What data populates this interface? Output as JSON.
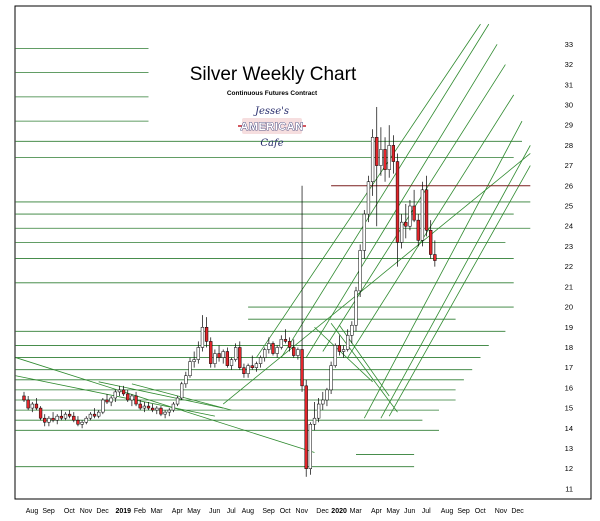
{
  "chart_data": {
    "type": "candlestick",
    "title": "Silver Weekly Chart",
    "subtitle": "Continuous Futures Contract",
    "logo": {
      "top": "Jesse's",
      "main": "AMERICAN",
      "bottom": "Cafe",
      "colors": {
        "navy": "#2a2f6e",
        "red": "#c4202b"
      }
    },
    "ylim": [
      10.6,
      34.6
    ],
    "y_ticks": [
      11,
      12,
      13,
      14,
      15,
      16,
      17,
      18,
      19,
      20,
      21,
      22,
      23,
      24,
      25,
      26,
      27,
      28,
      29,
      30,
      31,
      32,
      33
    ],
    "x_labels": [
      {
        "label": "Aug",
        "week": 0
      },
      {
        "label": "Sep",
        "week": 4
      },
      {
        "label": "Oct",
        "week": 9
      },
      {
        "label": "Nov",
        "week": 13
      },
      {
        "label": "Dec",
        "week": 17
      },
      {
        "label": "2019",
        "week": 22,
        "bold": true
      },
      {
        "label": "Feb",
        "week": 26
      },
      {
        "label": "Mar",
        "week": 30
      },
      {
        "label": "Apr",
        "week": 35
      },
      {
        "label": "May",
        "week": 39
      },
      {
        "label": "Jun",
        "week": 44
      },
      {
        "label": "Jul",
        "week": 48
      },
      {
        "label": "Aug",
        "week": 52
      },
      {
        "label": "Sep",
        "week": 57
      },
      {
        "label": "Oct",
        "week": 61
      },
      {
        "label": "Nov",
        "week": 65
      },
      {
        "label": "Dec",
        "week": 70
      },
      {
        "label": "2020",
        "week": 74,
        "bold": true
      },
      {
        "label": "Mar",
        "week": 78
      },
      {
        "label": "Apr",
        "week": 83
      },
      {
        "label": "May",
        "week": 87
      },
      {
        "label": "Jun",
        "week": 91
      },
      {
        "label": "Jul",
        "week": 95
      },
      {
        "label": "Aug",
        "week": 100
      },
      {
        "label": "Sep",
        "week": 104
      },
      {
        "label": "Oct",
        "week": 108
      },
      {
        "label": "Nov",
        "week": 113
      },
      {
        "label": "Dec",
        "week": 117
      }
    ],
    "colors": {
      "up": "#ffffff",
      "down": "#e3262b",
      "wick": "#000000",
      "support": "#2e7d32",
      "resistance": "#7a1f1f",
      "channel": "#2f8a2f"
    },
    "resistance_line": {
      "price": 26.0,
      "from_week": 74,
      "to_week": 122
    },
    "horizontal_levels": [
      {
        "price": 32.8,
        "from_week": -2,
        "to_week": 30
      },
      {
        "price": 31.6,
        "from_week": -2,
        "to_week": 30
      },
      {
        "price": 30.4,
        "from_week": -2,
        "to_week": 30
      },
      {
        "price": 29.2,
        "from_week": -2,
        "to_week": 30
      },
      {
        "price": 28.2,
        "from_week": -2,
        "to_week": 120
      },
      {
        "price": 27.4,
        "from_week": -2,
        "to_week": 118
      },
      {
        "price": 25.2,
        "from_week": -2,
        "to_week": 122
      },
      {
        "price": 24.6,
        "from_week": -2,
        "to_week": 118
      },
      {
        "price": 23.9,
        "from_week": -2,
        "to_week": 122
      },
      {
        "price": 23.2,
        "from_week": -2,
        "to_week": 116
      },
      {
        "price": 22.4,
        "from_week": -2,
        "to_week": 118
      },
      {
        "price": 21.2,
        "from_week": -2,
        "to_week": 118
      },
      {
        "price": 20.0,
        "from_week": 54,
        "to_week": 118
      },
      {
        "price": 19.4,
        "from_week": 54,
        "to_week": 104
      },
      {
        "price": 18.8,
        "from_week": -2,
        "to_week": 116
      },
      {
        "price": 18.1,
        "from_week": -2,
        "to_week": 112
      },
      {
        "price": 17.5,
        "from_week": -2,
        "to_week": 110
      },
      {
        "price": 16.9,
        "from_week": -2,
        "to_week": 108
      },
      {
        "price": 16.4,
        "from_week": -2,
        "to_week": 106
      },
      {
        "price": 15.9,
        "from_week": -2,
        "to_week": 104
      },
      {
        "price": 15.4,
        "from_week": -2,
        "to_week": 104
      },
      {
        "price": 14.9,
        "from_week": -2,
        "to_week": 100
      },
      {
        "price": 14.4,
        "from_week": -2,
        "to_week": 96
      },
      {
        "price": 13.9,
        "from_week": -2,
        "to_week": 100
      },
      {
        "price": 12.7,
        "from_week": 80,
        "to_week": 94
      },
      {
        "price": 12.1,
        "from_week": -2,
        "to_week": 94
      }
    ],
    "trend_lines": [
      {
        "from": [
          -2,
          17.5
        ],
        "to": [
          70,
          12.8
        ]
      },
      {
        "from": [
          -2,
          16.6
        ],
        "to": [
          46,
          14.6
        ]
      },
      {
        "from": [
          18,
          16.3
        ],
        "to": [
          48,
          15.0
        ]
      },
      {
        "from": [
          26,
          16.2
        ],
        "to": [
          50,
          14.9
        ]
      },
      {
        "from": [
          48,
          15.2
        ],
        "to": [
          122,
          27.6
        ]
      },
      {
        "from": [
          56,
          17.5
        ],
        "to": [
          110,
          34.0
        ]
      },
      {
        "from": [
          62,
          17.5
        ],
        "to": [
          112,
          34.0
        ]
      },
      {
        "from": [
          68,
          17.5
        ],
        "to": [
          114,
          33.0
        ]
      },
      {
        "from": [
          72,
          17.8
        ],
        "to": [
          116,
          32.0
        ]
      },
      {
        "from": [
          78,
          17.5
        ],
        "to": [
          118,
          30.5
        ]
      },
      {
        "from": [
          82,
          14.5
        ],
        "to": [
          120,
          29.2
        ]
      },
      {
        "from": [
          86,
          14.5
        ],
        "to": [
          122,
          28.0
        ]
      },
      {
        "from": [
          88,
          14.6
        ],
        "to": [
          122,
          27.0
        ]
      },
      {
        "from": [
          74,
          19.2
        ],
        "to": [
          90,
          14.8
        ]
      },
      {
        "from": [
          70,
          19.0
        ],
        "to": [
          84,
          16.3
        ]
      },
      {
        "from": [
          76,
          19.1
        ],
        "to": [
          88,
          15.6
        ]
      }
    ],
    "weeks": [
      [
        15.6,
        15.8,
        15.3,
        15.4
      ],
      [
        15.4,
        15.6,
        14.9,
        15.0
      ],
      [
        15.0,
        15.3,
        14.8,
        15.2
      ],
      [
        15.2,
        15.5,
        14.9,
        15.0
      ],
      [
        15.0,
        15.1,
        14.4,
        14.5
      ],
      [
        14.5,
        14.7,
        14.1,
        14.3
      ],
      [
        14.3,
        14.6,
        14.1,
        14.5
      ],
      [
        14.5,
        14.8,
        14.3,
        14.4
      ],
      [
        14.4,
        14.7,
        14.2,
        14.6
      ],
      [
        14.6,
        14.9,
        14.4,
        14.5
      ],
      [
        14.5,
        14.8,
        14.4,
        14.7
      ],
      [
        14.7,
        14.9,
        14.5,
        14.6
      ],
      [
        14.6,
        14.8,
        14.3,
        14.4
      ],
      [
        14.4,
        14.6,
        14.1,
        14.2
      ],
      [
        14.2,
        14.4,
        14.0,
        14.3
      ],
      [
        14.3,
        14.6,
        14.2,
        14.5
      ],
      [
        14.5,
        14.8,
        14.4,
        14.7
      ],
      [
        14.7,
        15.0,
        14.5,
        14.6
      ],
      [
        14.6,
        14.9,
        14.5,
        14.8
      ],
      [
        14.8,
        15.5,
        14.7,
        15.4
      ],
      [
        15.4,
        15.7,
        15.2,
        15.3
      ],
      [
        15.3,
        15.6,
        15.1,
        15.5
      ],
      [
        15.5,
        15.9,
        15.3,
        15.8
      ],
      [
        15.8,
        16.1,
        15.6,
        15.9
      ],
      [
        15.9,
        16.1,
        15.6,
        15.7
      ],
      [
        15.7,
        15.9,
        15.3,
        15.4
      ],
      [
        15.4,
        15.7,
        15.1,
        15.6
      ],
      [
        15.6,
        15.8,
        15.1,
        15.2
      ],
      [
        15.2,
        15.4,
        14.9,
        15.0
      ],
      [
        15.0,
        15.3,
        14.8,
        15.1
      ],
      [
        15.1,
        15.3,
        14.9,
        15.0
      ],
      [
        15.0,
        15.2,
        14.8,
        14.9
      ],
      [
        14.9,
        15.1,
        14.7,
        15.0
      ],
      [
        15.0,
        15.1,
        14.6,
        14.7
      ],
      [
        14.7,
        14.9,
        14.5,
        14.8
      ],
      [
        14.8,
        15.0,
        14.6,
        14.9
      ],
      [
        14.9,
        15.3,
        14.8,
        15.2
      ],
      [
        15.2,
        15.6,
        15.1,
        15.5
      ],
      [
        15.5,
        16.3,
        15.4,
        16.2
      ],
      [
        16.2,
        16.8,
        16.0,
        16.6
      ],
      [
        16.6,
        17.5,
        16.5,
        17.3
      ],
      [
        17.3,
        17.8,
        17.0,
        17.4
      ],
      [
        17.4,
        18.3,
        17.2,
        18.0
      ],
      [
        18.0,
        19.6,
        17.8,
        19.0
      ],
      [
        19.0,
        19.5,
        18.0,
        18.3
      ],
      [
        18.3,
        18.5,
        17.0,
        17.2
      ],
      [
        17.2,
        17.9,
        17.0,
        17.7
      ],
      [
        17.7,
        18.1,
        17.3,
        17.5
      ],
      [
        17.5,
        17.9,
        17.2,
        17.8
      ],
      [
        17.8,
        18.0,
        17.0,
        17.1
      ],
      [
        17.1,
        17.5,
        16.9,
        17.4
      ],
      [
        17.4,
        18.2,
        17.3,
        18.0
      ],
      [
        18.0,
        18.3,
        16.9,
        17.0
      ],
      [
        17.0,
        17.2,
        16.5,
        16.7
      ],
      [
        16.7,
        17.2,
        16.5,
        17.1
      ],
      [
        17.1,
        17.6,
        16.9,
        17.0
      ],
      [
        17.0,
        17.3,
        16.8,
        17.2
      ],
      [
        17.2,
        17.6,
        17.0,
        17.5
      ],
      [
        17.5,
        18.0,
        17.3,
        17.9
      ],
      [
        17.9,
        18.5,
        17.7,
        18.2
      ],
      [
        18.2,
        18.3,
        17.6,
        17.7
      ],
      [
        17.7,
        18.1,
        17.5,
        18.0
      ],
      [
        18.0,
        18.6,
        17.9,
        18.4
      ],
      [
        18.4,
        18.9,
        18.2,
        18.3
      ],
      [
        18.3,
        18.5,
        17.8,
        18.0
      ],
      [
        18.0,
        18.4,
        17.5,
        17.6
      ],
      [
        17.6,
        18.0,
        17.4,
        17.9
      ],
      [
        17.9,
        26.0,
        15.8,
        16.1
      ],
      [
        16.1,
        16.4,
        11.6,
        12.0
      ],
      [
        12.0,
        14.3,
        11.7,
        14.2
      ],
      [
        14.2,
        15.3,
        13.9,
        14.5
      ],
      [
        14.5,
        15.5,
        14.3,
        15.2
      ],
      [
        15.2,
        15.8,
        14.9,
        15.4
      ],
      [
        15.4,
        16.0,
        15.1,
        15.9
      ],
      [
        15.9,
        17.3,
        15.7,
        17.1
      ],
      [
        17.1,
        18.2,
        17.0,
        18.1
      ],
      [
        18.1,
        18.6,
        17.6,
        17.8
      ],
      [
        17.8,
        18.1,
        17.5,
        17.9
      ],
      [
        17.9,
        18.9,
        17.8,
        18.6
      ],
      [
        18.6,
        19.3,
        18.2,
        19.1
      ],
      [
        19.1,
        21.0,
        18.8,
        20.8
      ],
      [
        20.8,
        23.1,
        20.5,
        22.8
      ],
      [
        22.8,
        24.8,
        22.4,
        24.6
      ],
      [
        24.6,
        26.5,
        24.2,
        26.2
      ],
      [
        26.2,
        28.8,
        25.5,
        28.4
      ],
      [
        28.4,
        29.9,
        24.0,
        27.0
      ],
      [
        27.0,
        28.9,
        26.5,
        27.8
      ],
      [
        27.8,
        28.4,
        26.2,
        26.8
      ],
      [
        26.8,
        29.0,
        26.4,
        28.0
      ],
      [
        28.0,
        28.5,
        26.6,
        27.2
      ],
      [
        27.2,
        27.6,
        22.0,
        23.2
      ],
      [
        23.2,
        24.6,
        22.9,
        24.2
      ],
      [
        24.2,
        25.1,
        23.4,
        24.0
      ],
      [
        24.0,
        25.3,
        23.8,
        25.0
      ],
      [
        25.0,
        25.8,
        24.2,
        24.3
      ],
      [
        24.3,
        24.6,
        23.0,
        23.3
      ],
      [
        23.3,
        26.2,
        23.0,
        25.8
      ],
      [
        25.8,
        26.5,
        23.5,
        23.8
      ],
      [
        23.8,
        24.3,
        22.4,
        22.6
      ],
      [
        22.6,
        23.3,
        22.0,
        22.3
      ]
    ]
  }
}
